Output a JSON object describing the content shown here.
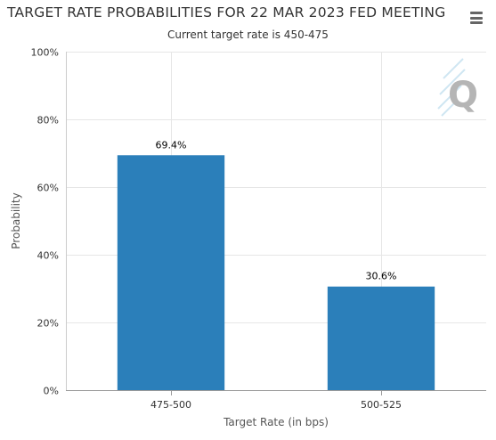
{
  "chart_data": {
    "type": "bar",
    "title": "TARGET RATE PROBABILITIES FOR 22 MAR 2023 FED MEETING",
    "subtitle": "Current target rate is 450-475",
    "categories": [
      "475-500",
      "500-525"
    ],
    "values": [
      69.4,
      30.6
    ],
    "data_labels": [
      "69.4%",
      "30.6%"
    ],
    "xlabel": "Target Rate (in bps)",
    "ylabel": "Probability",
    "ylim": [
      0,
      100
    ],
    "yticks": [
      0,
      20,
      40,
      60,
      80,
      100
    ],
    "ytick_labels": [
      "0%",
      "20%",
      "40%",
      "60%",
      "80%",
      "100%"
    ],
    "grid": true,
    "legend": "none",
    "bar_color": "#2b7fba",
    "grid_color": "#e6e6e6"
  },
  "menu": {
    "icon": "hamburger-menu-icon"
  },
  "watermark": {
    "icon": "q-logo-icon"
  }
}
